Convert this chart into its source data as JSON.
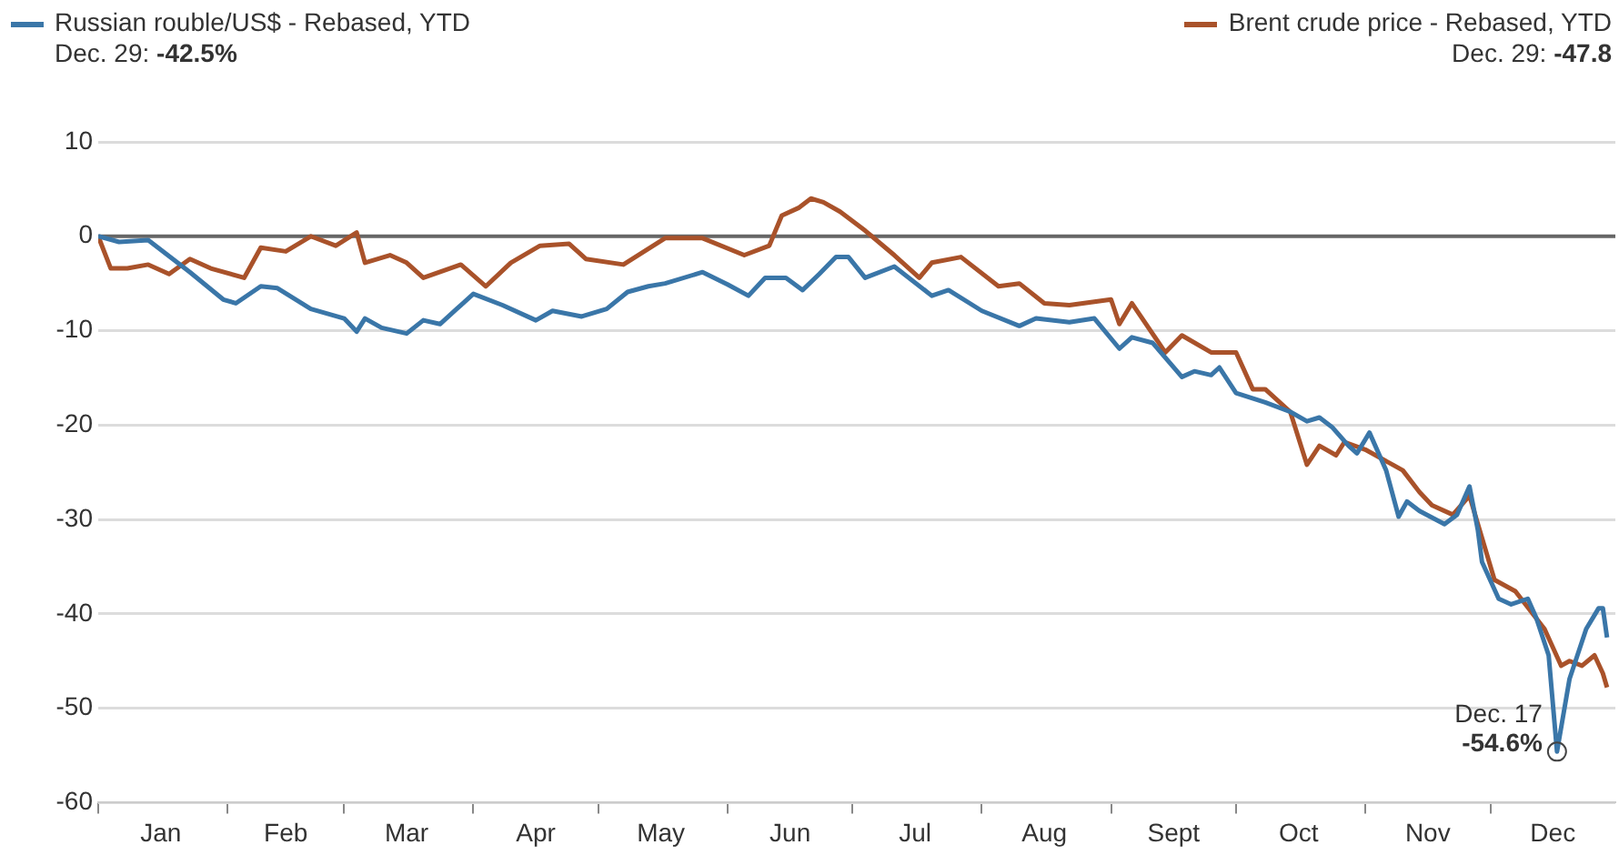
{
  "chart_data": {
    "type": "line",
    "legend": "top",
    "grid": "y",
    "marker": "none",
    "line_style": "solid",
    "xlim": [
      "--01-01",
      "--12-31"
    ],
    "xticks": [
      {
        "value": "--01-01",
        "label": null
      },
      {
        "value": "--01-16",
        "label": "Jan"
      },
      {
        "value": "--02-01",
        "label": null
      },
      {
        "value": "--02-15",
        "label": "Feb"
      },
      {
        "value": "--03-01",
        "label": null
      },
      {
        "value": "--03-16",
        "label": "Mar"
      },
      {
        "value": "--04-01",
        "label": null
      },
      {
        "value": "--04-16",
        "label": "Apr"
      },
      {
        "value": "--05-01",
        "label": null
      },
      {
        "value": "--05-16",
        "label": "May"
      },
      {
        "value": "--06-01",
        "label": null
      },
      {
        "value": "--06-16",
        "label": "Jun"
      },
      {
        "value": "--07-01",
        "label": null
      },
      {
        "value": "--07-16",
        "label": "Jul"
      },
      {
        "value": "--08-01",
        "label": null
      },
      {
        "value": "--08-16",
        "label": "Aug"
      },
      {
        "value": "--09-01",
        "label": null
      },
      {
        "value": "--09-16",
        "label": "Sept"
      },
      {
        "value": "--10-01",
        "label": null
      },
      {
        "value": "--10-16",
        "label": "Oct"
      },
      {
        "value": "--11-01",
        "label": null
      },
      {
        "value": "--11-16",
        "label": "Nov"
      },
      {
        "value": "--12-01",
        "label": null
      },
      {
        "value": "--12-16",
        "label": "Dec"
      }
    ],
    "ylim": [
      -60,
      10
    ],
    "yticks": [
      10,
      0,
      -10,
      -20,
      -30,
      -40,
      -50,
      -60
    ],
    "ref_lines": [
      {
        "axis": "y",
        "value": 0,
        "label": null,
        "color": "#666666"
      }
    ],
    "series": [
      {
        "name": "Russian rouble/US$ - Rebased, YTD",
        "color": "#3a76a8",
        "x": [
          "--01-01",
          "--01-06",
          "--01-13",
          "--01-23",
          "--01-31",
          "--02-03",
          "--02-09",
          "--02-13",
          "--02-21",
          "--03-01",
          "--03-04",
          "--03-06",
          "--03-10",
          "--03-16",
          "--03-20",
          "--03-24",
          "--03-28",
          "--04-01",
          "--04-08",
          "--04-16",
          "--04-20",
          "--04-27",
          "--05-03",
          "--05-08",
          "--05-13",
          "--05-17",
          "--05-26",
          "--06-01",
          "--06-06",
          "--06-10",
          "--06-15",
          "--06-19",
          "--06-23",
          "--06-27",
          "--06-30",
          "--07-04",
          "--07-11",
          "--07-20",
          "--07-24",
          "--08-01",
          "--08-10",
          "--08-14",
          "--08-22",
          "--08-28",
          "--09-03",
          "--09-06",
          "--09-11",
          "--09-18",
          "--09-21",
          "--09-25",
          "--09-27",
          "--10-01",
          "--10-08",
          "--10-14",
          "--10-18",
          "--10-21",
          "--10-24",
          "--10-28",
          "--10-30",
          "--11-02",
          "--11-06",
          "--11-09",
          "--11-11",
          "--11-14",
          "--11-20",
          "--11-23",
          "--11-26",
          "--11-28",
          "--11-29",
          "--12-03",
          "--12-06",
          "--12-10",
          "--12-12",
          "--12-15",
          "--12-17",
          "--12-20",
          "--12-24",
          "--12-27",
          "--12-28",
          "--12-29"
        ],
        "values": [
          0,
          -0.6,
          -0.4,
          -3.8,
          -6.7,
          -7.1,
          -5.3,
          -5.5,
          -7.7,
          -8.7,
          -10.1,
          -8.7,
          -9.7,
          -10.3,
          -8.9,
          -9.3,
          -7.7,
          -6.1,
          -7.3,
          -8.9,
          -7.9,
          -8.5,
          -7.7,
          -5.9,
          -5.3,
          -5.0,
          -3.8,
          -5.1,
          -6.3,
          -4.4,
          -4.4,
          -5.7,
          -4.0,
          -2.2,
          -2.2,
          -4.4,
          -3.2,
          -6.3,
          -5.7,
          -7.9,
          -9.5,
          -8.7,
          -9.1,
          -8.7,
          -11.9,
          -10.7,
          -11.3,
          -14.9,
          -14.3,
          -14.7,
          -13.9,
          -16.6,
          -17.6,
          -18.6,
          -19.6,
          -19.2,
          -20.2,
          -22.2,
          -23.0,
          -20.8,
          -24.8,
          -29.7,
          -28.1,
          -29.1,
          -30.5,
          -29.5,
          -26.5,
          -31.1,
          -34.5,
          -38.4,
          -39.0,
          -38.4,
          -40.4,
          -44.4,
          -54.6,
          -46.9,
          -41.6,
          -39.4,
          -39.4,
          -42.5
        ]
      },
      {
        "name": "Brent crude price - Rebased, YTD",
        "color": "#a9522a",
        "x": [
          "--01-01",
          "--01-04",
          "--01-08",
          "--01-13",
          "--01-18",
          "--01-23",
          "--01-28",
          "--02-05",
          "--02-09",
          "--02-15",
          "--02-21",
          "--02-27",
          "--03-04",
          "--03-06",
          "--03-12",
          "--03-16",
          "--03-20",
          "--03-29",
          "--04-04",
          "--04-10",
          "--04-17",
          "--04-24",
          "--04-28",
          "--05-07",
          "--05-17",
          "--05-26",
          "--06-05",
          "--06-11",
          "--06-14",
          "--06-18",
          "--06-21",
          "--06-24",
          "--06-28",
          "--07-04",
          "--07-11",
          "--07-17",
          "--07-20",
          "--07-27",
          "--08-05",
          "--08-10",
          "--08-16",
          "--08-22",
          "--09-01",
          "--09-03",
          "--09-06",
          "--09-14",
          "--09-18",
          "--09-25",
          "--10-01",
          "--10-05",
          "--10-08",
          "--10-14",
          "--10-18",
          "--10-21",
          "--10-25",
          "--10-27",
          "--11-01",
          "--11-10",
          "--11-14",
          "--11-17",
          "--11-22",
          "--11-26",
          "--12-02",
          "--12-07",
          "--12-14",
          "--12-18",
          "--12-20",
          "--12-23",
          "--12-26",
          "--12-28",
          "--12-29"
        ],
        "values": [
          0,
          -3.4,
          -3.4,
          -3.0,
          -4.0,
          -2.4,
          -3.4,
          -4.4,
          -1.2,
          -1.6,
          0,
          -1.0,
          0.4,
          -2.8,
          -2.0,
          -2.8,
          -4.4,
          -3.0,
          -5.3,
          -2.8,
          -1.0,
          -0.8,
          -2.4,
          -3.0,
          -0.2,
          -0.2,
          -2.0,
          -1.0,
          2.2,
          3.0,
          4.0,
          3.6,
          2.6,
          0.6,
          -2.0,
          -4.4,
          -2.8,
          -2.2,
          -5.3,
          -5.0,
          -7.1,
          -7.3,
          -6.7,
          -9.3,
          -7.1,
          -12.3,
          -10.5,
          -12.3,
          -12.3,
          -16.2,
          -16.2,
          -18.6,
          -24.2,
          -22.2,
          -23.2,
          -21.8,
          -22.6,
          -24.8,
          -27.1,
          -28.5,
          -29.5,
          -27.5,
          -36.4,
          -37.6,
          -41.6,
          -45.5,
          -45.0,
          -45.5,
          -44.4,
          -46.3,
          -47.8
        ]
      }
    ],
    "annotations": [
      "Dec. 29: -42.5%",
      "Dec. 29: -47.8",
      {
        "text": "Dec. 17\n-54.6%",
        "x": "--12-17",
        "y": -54.6
      }
    ]
  }
}
